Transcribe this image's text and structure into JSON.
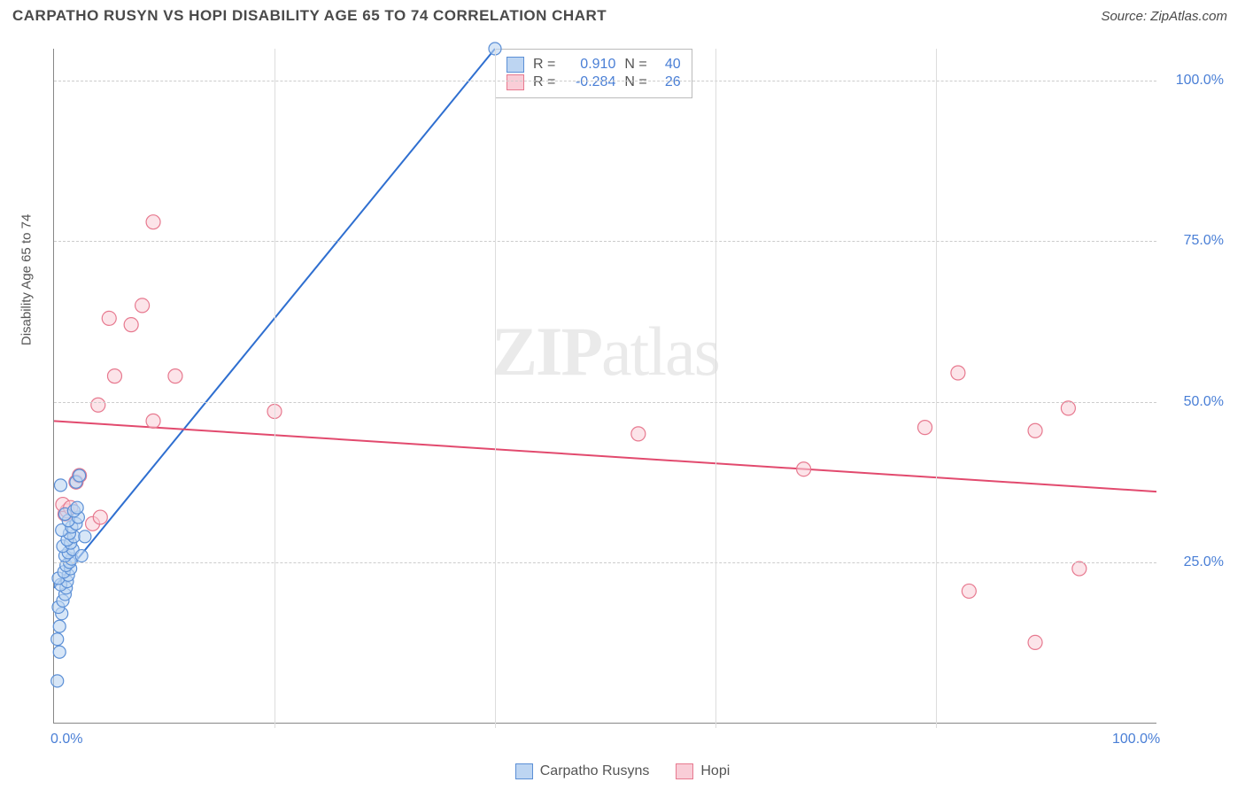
{
  "header": {
    "title": "CARPATHO RUSYN VS HOPI DISABILITY AGE 65 TO 74 CORRELATION CHART",
    "source": "Source: ZipAtlas.com"
  },
  "chart": {
    "type": "scatter",
    "ylabel": "Disability Age 65 to 74",
    "watermark_a": "ZIP",
    "watermark_b": "atlas",
    "xlim": [
      0,
      100
    ],
    "ylim": [
      0,
      105
    ],
    "ytick_positions": [
      25,
      50,
      75,
      100
    ],
    "ytick_labels": [
      "25.0%",
      "50.0%",
      "75.0%",
      "100.0%"
    ],
    "xtick_positions": [
      0,
      100
    ],
    "xtick_labels": [
      "0.0%",
      "100.0%"
    ],
    "xgrid_positions": [
      20,
      40,
      60,
      80
    ],
    "background_color": "#ffffff",
    "grid_color": "#cccccc",
    "series": {
      "a": {
        "label": "Carpatho Rusyns",
        "color_fill": "#bdd5f2",
        "color_stroke": "#5b8fd6",
        "marker_radius": 7,
        "fill_opacity": 0.6,
        "R_label": "R =",
        "R": "0.910",
        "N_label": "N =",
        "N": "40",
        "trend": {
          "x1": 0,
          "y1": 21,
          "x2": 40,
          "y2": 105
        },
        "trend_color": "#2f6fd0",
        "trend_width": 2,
        "points": [
          [
            0.3,
            6.5
          ],
          [
            0.3,
            13
          ],
          [
            0.5,
            15
          ],
          [
            0.7,
            17
          ],
          [
            0.4,
            18
          ],
          [
            0.8,
            19
          ],
          [
            1.0,
            20
          ],
          [
            1.1,
            21
          ],
          [
            0.6,
            21.5
          ],
          [
            1.2,
            22
          ],
          [
            0.4,
            22.5
          ],
          [
            1.3,
            23
          ],
          [
            0.9,
            23.5
          ],
          [
            1.5,
            24
          ],
          [
            1.1,
            24.5
          ],
          [
            1.4,
            25
          ],
          [
            1.6,
            25.5
          ],
          [
            1.0,
            26
          ],
          [
            1.3,
            26.5
          ],
          [
            1.7,
            27
          ],
          [
            0.8,
            27.5
          ],
          [
            1.5,
            28
          ],
          [
            1.2,
            28.5
          ],
          [
            1.8,
            29
          ],
          [
            1.4,
            29.5
          ],
          [
            0.7,
            30
          ],
          [
            1.6,
            30.5
          ],
          [
            2.0,
            31
          ],
          [
            1.3,
            31.5
          ],
          [
            2.2,
            32
          ],
          [
            1.0,
            32.5
          ],
          [
            1.8,
            33
          ],
          [
            2.1,
            33.5
          ],
          [
            0.6,
            37
          ],
          [
            2.0,
            37.5
          ],
          [
            2.3,
            38.5
          ],
          [
            2.5,
            26
          ],
          [
            2.8,
            29
          ],
          [
            0.5,
            11
          ],
          [
            40,
            105
          ]
        ]
      },
      "b": {
        "label": "Hopi",
        "color_fill": "#f9cdd7",
        "color_stroke": "#e7798f",
        "marker_radius": 8,
        "fill_opacity": 0.55,
        "R_label": "R =",
        "R": "-0.284",
        "N_label": "N =",
        "N": "26",
        "trend": {
          "x1": 0,
          "y1": 47,
          "x2": 100,
          "y2": 36
        },
        "trend_color": "#e24a6e",
        "trend_width": 2,
        "points": [
          [
            1.0,
            32.5
          ],
          [
            1.2,
            33
          ],
          [
            0.8,
            34
          ],
          [
            3.5,
            31
          ],
          [
            4.2,
            32
          ],
          [
            2.0,
            37.5
          ],
          [
            2.3,
            38.5
          ],
          [
            4,
            49.5
          ],
          [
            5.5,
            54
          ],
          [
            9,
            47
          ],
          [
            7,
            62
          ],
          [
            11,
            54
          ],
          [
            5,
            63
          ],
          [
            8,
            65
          ],
          [
            9,
            78
          ],
          [
            20,
            48.5
          ],
          [
            53,
            45
          ],
          [
            68,
            39.5
          ],
          [
            79,
            46
          ],
          [
            82,
            54.5
          ],
          [
            89,
            45.5
          ],
          [
            92,
            49
          ],
          [
            83,
            20.5
          ],
          [
            89,
            12.5
          ],
          [
            93,
            24
          ],
          [
            1.5,
            33.5
          ]
        ]
      }
    }
  }
}
